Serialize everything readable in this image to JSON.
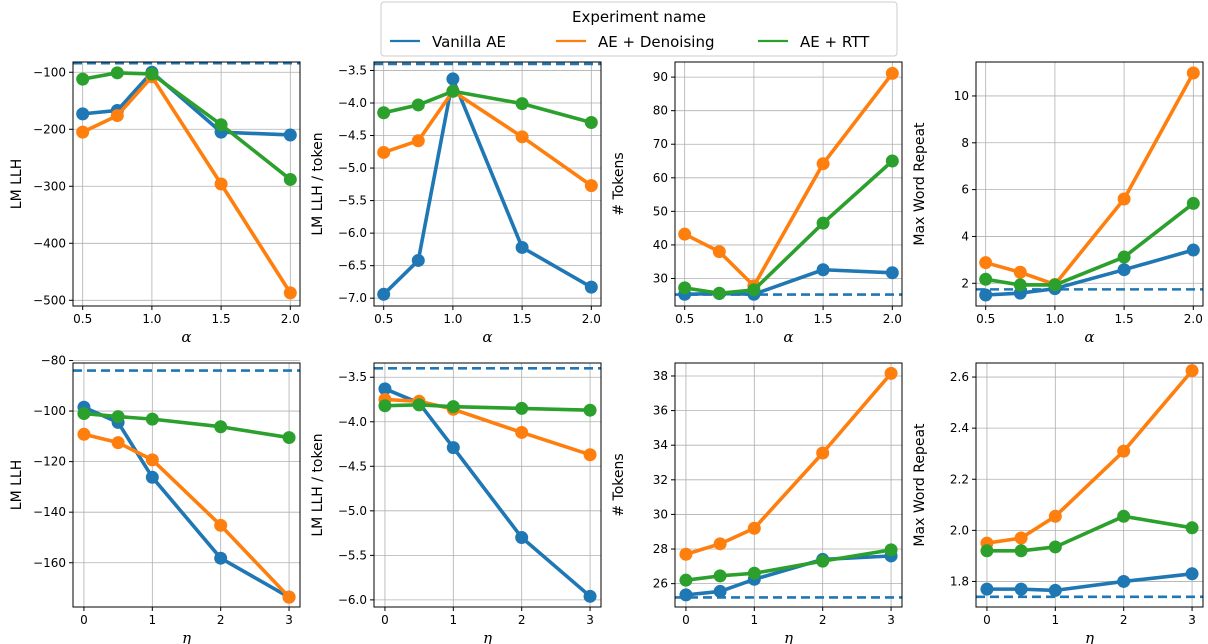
{
  "legend": {
    "title": "Experiment name",
    "entries": [
      {
        "name": "Vanilla AE",
        "color": "#1f77b4"
      },
      {
        "name": "AE + Denoising",
        "color": "#ff7f0e"
      },
      {
        "name": "AE + RTT",
        "color": "#2ca02c"
      }
    ]
  },
  "chart_data": [
    {
      "type": "line",
      "row": 0,
      "col": 0,
      "xlabel": "α",
      "ylabel": "LM LLH",
      "x": [
        0.5,
        0.75,
        1.0,
        1.5,
        2.0
      ],
      "xlim": [
        0.43,
        2.07
      ],
      "ylim": [
        -510,
        -82
      ],
      "xticks": [
        0.5,
        1.0,
        1.5,
        2.0
      ],
      "xtick_labels": [
        "0.5",
        "1.0",
        "1.5",
        "2.0"
      ],
      "yticks": [
        -500,
        -400,
        -300,
        -200,
        -100
      ],
      "ytick_labels": [
        "−500",
        "−400",
        "−300",
        "−200",
        "−100"
      ],
      "reference": -84,
      "series": [
        {
          "name": "Vanilla AE",
          "values": [
            -173,
            -167,
            -100,
            -205,
            -210
          ]
        },
        {
          "name": "AE + Denoising",
          "values": [
            -205,
            -176,
            -108,
            -296,
            -487
          ]
        },
        {
          "name": "AE + RTT",
          "values": [
            -112,
            -101,
            -103,
            -192,
            -288
          ]
        }
      ]
    },
    {
      "type": "line",
      "row": 0,
      "col": 1,
      "xlabel": "α",
      "ylabel": "LM LLH / token",
      "x": [
        0.5,
        0.75,
        1.0,
        1.5,
        2.0
      ],
      "xlim": [
        0.43,
        2.07
      ],
      "ylim": [
        -7.12,
        -3.37
      ],
      "xticks": [
        0.5,
        1.0,
        1.5,
        2.0
      ],
      "xtick_labels": [
        "0.5",
        "1.0",
        "1.5",
        "2.0"
      ],
      "yticks": [
        -7.0,
        -6.5,
        -6.0,
        -5.5,
        -5.0,
        -4.5,
        -4.0,
        -3.5
      ],
      "ytick_labels": [
        "−7.0",
        "−6.5",
        "−6.0",
        "−5.5",
        "−5.0",
        "−4.5",
        "−4.0",
        "−3.5"
      ],
      "reference": -3.4,
      "series": [
        {
          "name": "Vanilla AE",
          "values": [
            -6.94,
            -6.42,
            -3.63,
            -6.22,
            -6.83
          ]
        },
        {
          "name": "AE + Denoising",
          "values": [
            -4.76,
            -4.58,
            -3.82,
            -4.52,
            -5.27
          ]
        },
        {
          "name": "AE + RTT",
          "values": [
            -4.15,
            -4.03,
            -3.82,
            -4.01,
            -4.3
          ]
        }
      ]
    },
    {
      "type": "line",
      "row": 0,
      "col": 2,
      "xlabel": "α",
      "ylabel": "# Tokens",
      "x": [
        0.5,
        0.75,
        1.0,
        1.5,
        2.0
      ],
      "xlim": [
        0.43,
        2.07
      ],
      "ylim": [
        21.8,
        94.5
      ],
      "xticks": [
        0.5,
        1.0,
        1.5,
        2.0
      ],
      "xtick_labels": [
        "0.5",
        "1.0",
        "1.5",
        "2.0"
      ],
      "yticks": [
        30,
        40,
        50,
        60,
        70,
        80,
        90
      ],
      "ytick_labels": [
        "30",
        "40",
        "50",
        "60",
        "70",
        "80",
        "90"
      ],
      "reference": 25.2,
      "series": [
        {
          "name": "Vanilla AE",
          "values": [
            25.3,
            25.5,
            25.3,
            32.6,
            31.7
          ]
        },
        {
          "name": "AE + Denoising",
          "values": [
            43.2,
            38.0,
            27.8,
            64.2,
            91.1
          ]
        },
        {
          "name": "AE + RTT",
          "values": [
            27.2,
            25.6,
            26.6,
            46.5,
            65.0
          ]
        }
      ]
    },
    {
      "type": "line",
      "row": 0,
      "col": 3,
      "xlabel": "α",
      "ylabel": "Max Word Repeat",
      "x": [
        0.5,
        0.75,
        1.0,
        1.5,
        2.0
      ],
      "xlim": [
        0.43,
        2.07
      ],
      "ylim": [
        1.03,
        11.45
      ],
      "xticks": [
        0.5,
        1.0,
        1.5,
        2.0
      ],
      "xtick_labels": [
        "0.5",
        "1.0",
        "1.5",
        "2.0"
      ],
      "yticks": [
        2,
        4,
        6,
        8,
        10
      ],
      "ytick_labels": [
        "2",
        "4",
        "6",
        "8",
        "10"
      ],
      "reference": 1.74,
      "series": [
        {
          "name": "Vanilla AE",
          "values": [
            1.5,
            1.58,
            1.77,
            2.58,
            3.42
          ]
        },
        {
          "name": "AE + Denoising",
          "values": [
            2.88,
            2.47,
            1.95,
            5.6,
            10.98
          ]
        },
        {
          "name": "AE + RTT",
          "values": [
            2.17,
            1.93,
            1.93,
            3.12,
            5.41
          ]
        }
      ]
    },
    {
      "type": "line",
      "row": 1,
      "col": 0,
      "xlabel": "η",
      "ylabel": "LM LLH",
      "x": [
        0,
        0.5,
        1,
        2,
        3
      ],
      "xlim": [
        -0.16,
        3.16
      ],
      "ylim": [
        -177.5,
        -81
      ],
      "xticks": [
        0,
        1,
        2,
        3
      ],
      "xtick_labels": [
        "0",
        "1",
        "2",
        "3"
      ],
      "yticks": [
        -160,
        -140,
        -120,
        -100,
        -80
      ],
      "ytick_labels": [
        "−160",
        "−140",
        "−120",
        "−100",
        "−80"
      ],
      "reference": -84,
      "series": [
        {
          "name": "Vanilla AE",
          "values": [
            -98.5,
            -104.5,
            -126.2,
            -158.2,
            -173.6
          ]
        },
        {
          "name": "AE + Denoising",
          "values": [
            -109.2,
            -112.5,
            -119.3,
            -145.2,
            -173.6
          ]
        },
        {
          "name": "AE + RTT",
          "values": [
            -101.0,
            -102.2,
            -103.2,
            -106.2,
            -110.5
          ]
        }
      ]
    },
    {
      "type": "line",
      "row": 1,
      "col": 1,
      "xlabel": "η",
      "ylabel": "LM LLH / token",
      "x": [
        0,
        0.5,
        1,
        2,
        3
      ],
      "xlim": [
        -0.16,
        3.16
      ],
      "ylim": [
        -6.08,
        -3.34
      ],
      "xticks": [
        0,
        1,
        2,
        3
      ],
      "xtick_labels": [
        "0",
        "1",
        "2",
        "3"
      ],
      "yticks": [
        -6.0,
        -5.5,
        -5.0,
        -4.5,
        -4.0,
        -3.5
      ],
      "ytick_labels": [
        "−6.0",
        "−5.5",
        "−5.0",
        "−4.5",
        "−4.0",
        "−3.5"
      ],
      "reference": -3.4,
      "series": [
        {
          "name": "Vanilla AE",
          "values": [
            -3.63,
            -3.79,
            -4.29,
            -5.3,
            -5.96
          ]
        },
        {
          "name": "AE + Denoising",
          "values": [
            -3.75,
            -3.77,
            -3.86,
            -4.12,
            -4.37
          ]
        },
        {
          "name": "AE + RTT",
          "values": [
            -3.82,
            -3.81,
            -3.83,
            -3.85,
            -3.87
          ]
        }
      ]
    },
    {
      "type": "line",
      "row": 1,
      "col": 2,
      "xlabel": "η",
      "ylabel": "# Tokens",
      "x": [
        0,
        0.5,
        1,
        2,
        3
      ],
      "xlim": [
        -0.16,
        3.16
      ],
      "ylim": [
        24.65,
        38.75
      ],
      "xticks": [
        0,
        1,
        2,
        3
      ],
      "xtick_labels": [
        "0",
        "1",
        "2",
        "3"
      ],
      "yticks": [
        26,
        28,
        30,
        32,
        34,
        36,
        38
      ],
      "ytick_labels": [
        "26",
        "28",
        "30",
        "32",
        "34",
        "36",
        "38"
      ],
      "reference": 25.2,
      "series": [
        {
          "name": "Vanilla AE",
          "values": [
            25.35,
            25.55,
            26.25,
            27.4,
            27.6
          ]
        },
        {
          "name": "AE + Denoising",
          "values": [
            27.7,
            28.3,
            29.2,
            33.55,
            38.15
          ]
        },
        {
          "name": "AE + RTT",
          "values": [
            26.2,
            26.45,
            26.6,
            27.3,
            27.95
          ]
        }
      ]
    },
    {
      "type": "line",
      "row": 1,
      "col": 3,
      "xlabel": "η",
      "ylabel": "Max Word Repeat",
      "x": [
        0,
        0.5,
        1,
        2,
        3
      ],
      "xlim": [
        -0.16,
        3.16
      ],
      "ylim": [
        1.7,
        2.655
      ],
      "xticks": [
        0,
        1,
        2,
        3
      ],
      "xtick_labels": [
        "0",
        "1",
        "2",
        "3"
      ],
      "yticks": [
        1.8,
        2.0,
        2.2,
        2.4,
        2.6
      ],
      "ytick_labels": [
        "1.8",
        "2.0",
        "2.2",
        "2.4",
        "2.6"
      ],
      "reference": 1.74,
      "series": [
        {
          "name": "Vanilla AE",
          "values": [
            1.77,
            1.77,
            1.765,
            1.8,
            1.83
          ]
        },
        {
          "name": "AE + Denoising",
          "values": [
            1.95,
            1.97,
            2.055,
            2.31,
            2.625
          ]
        },
        {
          "name": "AE + RTT",
          "values": [
            1.92,
            1.92,
            1.935,
            2.055,
            2.01
          ]
        }
      ]
    }
  ]
}
